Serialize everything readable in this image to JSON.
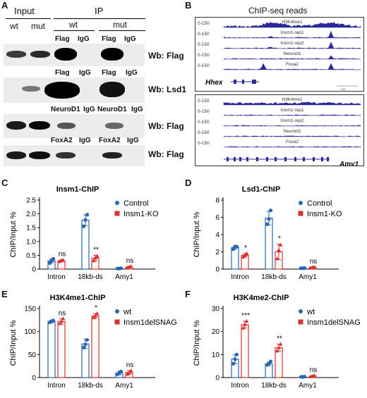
{
  "panel_letters": {
    "a": "A",
    "b": "B",
    "c": "C",
    "d": "D",
    "e": "E",
    "f": "F"
  },
  "panelA": {
    "input_label": "Input",
    "ip_label": "IP",
    "wt": "wt",
    "mut": "mut",
    "flag": "Flag",
    "igg": "IgG",
    "neurod1": "NeuroD1",
    "foxa2": "FoxA2",
    "wb_flag": "Wb: Flag",
    "wb_lsd1": "Wb: Lsd1"
  },
  "panelB": {
    "title": "ChIP-seq reads",
    "range": "0-150",
    "tracks": [
      "H3K4me1",
      "Insm1-rep1",
      "Insm1-rep2",
      "Neurod1",
      "Foxa2"
    ],
    "gene1": "Hhex",
    "gene2": "Amy1",
    "scale_text": "1 kb"
  },
  "chart_data": [
    {
      "type": "bar",
      "title": "Insm1-ChIP",
      "ylabel": "ChIP/Input %",
      "categories": [
        "Intron",
        "18kb-ds",
        "Amy1"
      ],
      "ylim": [
        0,
        2.5
      ],
      "yticks": [
        "0",
        "0.5",
        "1.0",
        "1.5",
        "2.0",
        "2.5"
      ],
      "series": [
        {
          "name": "Control",
          "color": "#2a67b1",
          "values": [
            0.3,
            1.77,
            0.02
          ],
          "err": [
            0.07,
            0.2,
            0.01
          ],
          "points": [
            [
              0.22,
              0.3,
              0.37
            ],
            [
              1.55,
              1.78,
              1.97
            ],
            [
              0.02,
              0.02,
              0.03
            ]
          ]
        },
        {
          "name": "Insm1-KO",
          "color": "#d93030",
          "values": [
            0.3,
            0.4,
            0.07
          ],
          "err": [
            0.04,
            0.1,
            0.03
          ],
          "points": [
            [
              0.27,
              0.31,
              0.33
            ],
            [
              0.3,
              0.4,
              0.47
            ],
            [
              0.05,
              0.07,
              0.1
            ]
          ]
        }
      ],
      "sig": [
        "ns",
        "**",
        "ns"
      ]
    },
    {
      "type": "bar",
      "title": "Lsd1-ChIP",
      "ylabel": "ChIP/Input %",
      "categories": [
        "Intron",
        "18kb-ds",
        "Amy1"
      ],
      "ylim": [
        0,
        8
      ],
      "yticks": [
        "0",
        "2",
        "4",
        "6",
        "8"
      ],
      "series": [
        {
          "name": "Control",
          "color": "#2a67b1",
          "values": [
            2.5,
            5.9,
            0.1
          ],
          "err": [
            0.2,
            0.8,
            0.05
          ],
          "points": [
            [
              2.3,
              2.6,
              2.6
            ],
            [
              5.2,
              5.8,
              6.8
            ],
            [
              0.1,
              0.1,
              0.12
            ]
          ]
        },
        {
          "name": "Insm1-KO",
          "color": "#d93030",
          "values": [
            1.6,
            2.0,
            0.2
          ],
          "err": [
            0.2,
            0.9,
            0.05
          ],
          "points": [
            [
              1.4,
              1.6,
              1.8
            ],
            [
              1.2,
              2.2,
              2.8
            ],
            [
              0.15,
              0.2,
              0.25
            ]
          ]
        }
      ],
      "sig": [
        "*",
        "*",
        "ns"
      ]
    },
    {
      "type": "bar",
      "title": "H3K4me1-ChIP",
      "ylabel": "ChIP/Input %",
      "categories": [
        "Intron",
        "18kb-ds",
        "Amy1"
      ],
      "ylim": [
        0,
        150
      ],
      "yticks": [
        "0",
        "50",
        "100",
        "150"
      ],
      "series": [
        {
          "name": "wt",
          "color": "#2a67b1",
          "values": [
            122,
            73,
            10
          ],
          "err": [
            3,
            10,
            4
          ],
          "points": [
            [
              120,
              122,
              124
            ],
            [
              65,
              72,
              82
            ],
            [
              7,
              10,
              13
            ]
          ]
        },
        {
          "name": "Insm1delSNAG",
          "color": "#d93030",
          "values": [
            122,
            134,
            11
          ],
          "err": [
            6,
            5,
            4
          ],
          "points": [
            [
              117,
              122,
              128
            ],
            [
              130,
              134,
              139
            ],
            [
              7,
              10,
              15
            ]
          ]
        }
      ],
      "sig": [
        "ns",
        "*",
        "ns"
      ]
    },
    {
      "type": "bar",
      "title": "H3K4me2-ChIP",
      "ylabel": "ChIP/Input %",
      "categories": [
        "Intron",
        "18kb-ds",
        "Amy1"
      ],
      "ylim": [
        0,
        30
      ],
      "yticks": [
        "0",
        "10",
        "20",
        "30"
      ],
      "series": [
        {
          "name": "wt",
          "color": "#2a67b1",
          "values": [
            8,
            6,
            0.3
          ],
          "err": [
            2,
            0.8,
            0.1
          ],
          "points": [
            [
              6,
              8,
              10
            ],
            [
              5.5,
              6,
              7
            ],
            [
              0.3,
              0.3,
              0.4
            ]
          ]
        },
        {
          "name": "Insm1delSNAG",
          "color": "#d93030",
          "values": [
            23,
            13,
            0.6
          ],
          "err": [
            1.5,
            1.5,
            0.3
          ],
          "points": [
            [
              21.5,
              23,
              24.5
            ],
            [
              11.5,
              13,
              14.5
            ],
            [
              0.4,
              0.6,
              0.9
            ]
          ]
        }
      ],
      "sig": [
        "***",
        "**",
        "ns"
      ]
    }
  ]
}
